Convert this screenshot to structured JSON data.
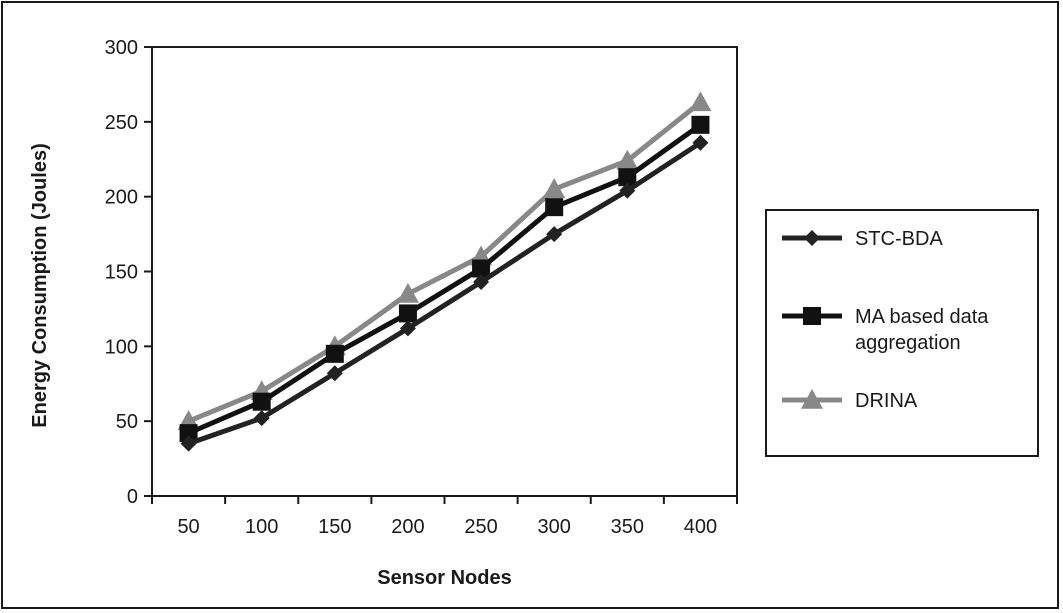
{
  "chart_data": {
    "type": "line",
    "title": "",
    "xlabel": "Sensor Nodes",
    "ylabel": "Energy Consumption (Joules)",
    "categories": [
      "50",
      "100",
      "150",
      "200",
      "250",
      "300",
      "350",
      "400"
    ],
    "ylim": [
      0,
      300
    ],
    "yticks": [
      "0",
      "50",
      "100",
      "150",
      "200",
      "250",
      "300"
    ],
    "grid": false,
    "legend_position": "right",
    "series": [
      {
        "name": "STC-BDA",
        "marker": "diamond",
        "color": "#222222",
        "values": [
          35,
          52,
          82,
          112,
          143,
          175,
          204,
          236
        ]
      },
      {
        "name": "MA based data aggregation",
        "marker": "square",
        "color": "#111111",
        "values": [
          42,
          63,
          95,
          122,
          152,
          193,
          213,
          248
        ]
      },
      {
        "name": "DRINA",
        "marker": "triangle",
        "color": "#888888",
        "values": [
          50,
          70,
          100,
          135,
          160,
          205,
          224,
          263
        ]
      }
    ],
    "legend_lines": [
      [
        "STC-BDA"
      ],
      [
        "MA based data",
        "aggregation"
      ],
      [
        "DRINA"
      ]
    ]
  }
}
